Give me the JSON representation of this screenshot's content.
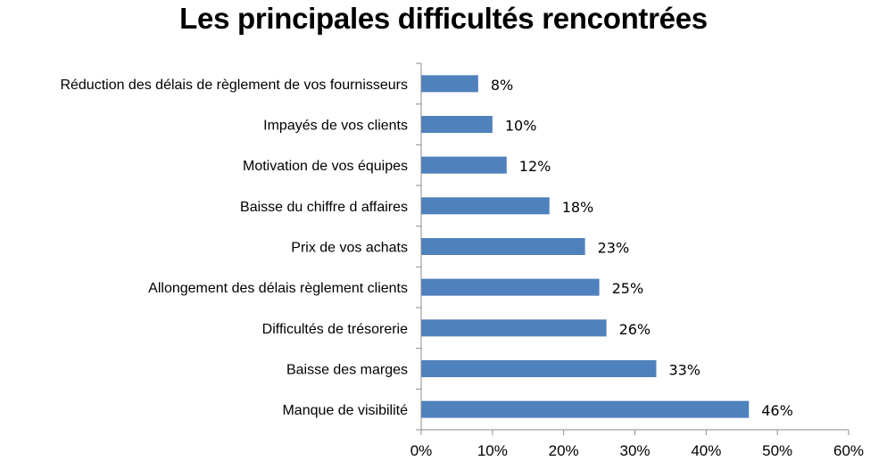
{
  "chart_data": {
    "type": "bar",
    "orientation": "horizontal",
    "title": "Les principales difficultés rencontrées",
    "categories": [
      "Réduction des délais de règlement de vos fournisseurs",
      "Impayés de vos clients",
      "Motivation de vos équipes",
      "Baisse du chiffre d affaires",
      "Prix de vos achats",
      "Allongement des délais règlement clients",
      "Difficultés de trésorerie",
      "Baisse des marges",
      "Manque de visibilité"
    ],
    "values": [
      8,
      10,
      12,
      18,
      23,
      25,
      26,
      33,
      46
    ],
    "value_labels": [
      "8%",
      "10%",
      "12%",
      "18%",
      "23%",
      "25%",
      "26%",
      "33%",
      "46%"
    ],
    "x_ticks": [
      "0%",
      "10%",
      "20%",
      "30%",
      "40%",
      "50%",
      "60%"
    ],
    "xlim": [
      0,
      60
    ],
    "xlabel": "",
    "ylabel": "",
    "grid": false,
    "legend": "none",
    "bar_color": "#4f81bd"
  }
}
